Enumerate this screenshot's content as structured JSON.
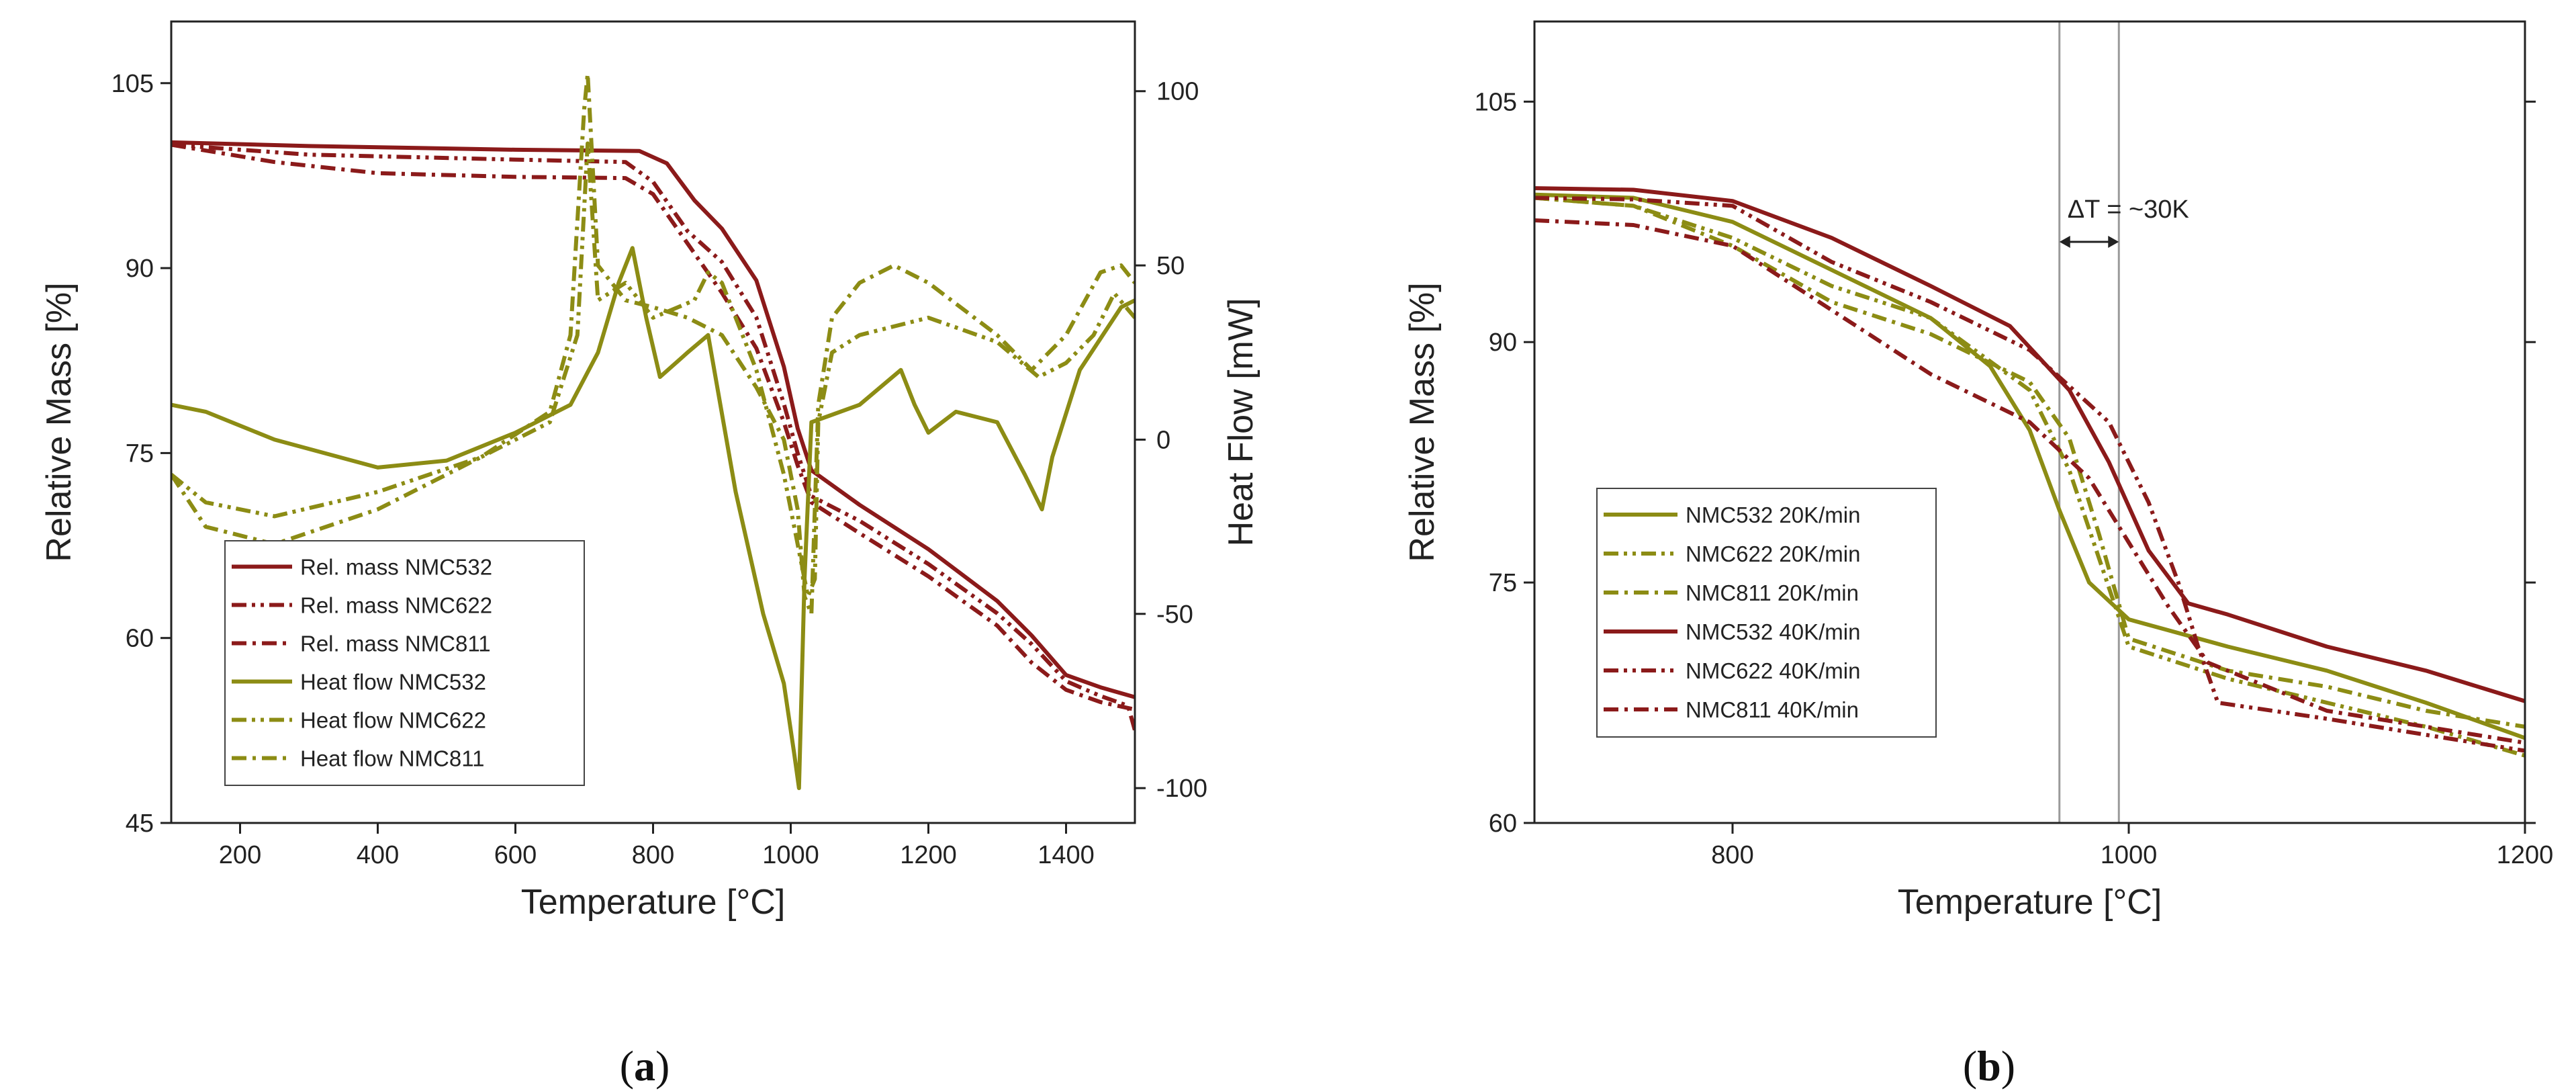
{
  "colors": {
    "mass": "#8b1a1a",
    "heat": "#8c8c14",
    "axis": "#222222",
    "guide": "#9a9a9a"
  },
  "chart_data": [
    {
      "type": "line",
      "panel_label": {
        "open": "(",
        "letter": "a",
        "close": ")"
      },
      "xlabel": "Temperature [°C]",
      "ylabel": "Relative Mass [%]",
      "y2label": "Heat Flow [mW]",
      "xlim": [
        100,
        1500
      ],
      "ylim": [
        45,
        110
      ],
      "y2lim": [
        -110,
        120
      ],
      "xticks": [
        200,
        400,
        600,
        800,
        1000,
        1200,
        1400
      ],
      "yticks": [
        45,
        60,
        75,
        90,
        105
      ],
      "y2ticks": [
        100,
        50,
        0,
        -50,
        -100
      ],
      "legend_position": "lower-left",
      "series": [
        {
          "name": "Rel. mass NMC532",
          "axis": "y",
          "color_key": "mass",
          "dash": "solid",
          "x": [
            100,
            300,
            600,
            780,
            820,
            860,
            900,
            950,
            990,
            1010,
            1030,
            1100,
            1200,
            1300,
            1350,
            1400,
            1450,
            1500
          ],
          "y": [
            100.2,
            99.9,
            99.6,
            99.5,
            98.5,
            95.5,
            93.2,
            89.0,
            82.0,
            77.0,
            73.6,
            70.8,
            67.2,
            63.0,
            60.2,
            57.0,
            56.0,
            55.2
          ]
        },
        {
          "name": "Rel. mass NMC622",
          "axis": "y",
          "color_key": "mass",
          "dash": "dashdotdot",
          "x": [
            100,
            300,
            600,
            760,
            800,
            850,
            900,
            950,
            990,
            1010,
            1030,
            1100,
            1200,
            1300,
            1350,
            1400,
            1450,
            1490,
            1500
          ],
          "y": [
            100.0,
            99.2,
            98.8,
            98.6,
            97.0,
            93.0,
            90.5,
            86.0,
            79.0,
            75.0,
            71.5,
            69.5,
            66.0,
            62.0,
            59.5,
            56.5,
            55.3,
            54.5,
            52.5
          ]
        },
        {
          "name": "Rel. mass NMC811",
          "axis": "y",
          "color_key": "mass",
          "dash": "dashdot",
          "x": [
            100,
            250,
            400,
            600,
            760,
            800,
            850,
            900,
            950,
            990,
            1010,
            1030,
            1100,
            1200,
            1300,
            1350,
            1400,
            1450,
            1500
          ],
          "y": [
            100.0,
            98.6,
            97.7,
            97.4,
            97.3,
            96.0,
            92.0,
            88.0,
            83.5,
            77.5,
            74.0,
            71.0,
            68.5,
            65.0,
            61.0,
            58.0,
            55.8,
            54.8,
            54.2
          ]
        },
        {
          "name": "Heat flow NMC532",
          "axis": "y2",
          "color_key": "heat",
          "dash": "solid",
          "x": [
            100,
            150,
            250,
            400,
            500,
            600,
            680,
            720,
            750,
            770,
            790,
            810,
            850,
            880,
            920,
            960,
            990,
            1005,
            1012,
            1020,
            1030,
            1100,
            1160,
            1180,
            1200,
            1240,
            1300,
            1340,
            1365,
            1380,
            1420,
            1480,
            1500
          ],
          "y": [
            10,
            8,
            0,
            -8,
            -6,
            2,
            10,
            25,
            45,
            55,
            35,
            18,
            25,
            30,
            -15,
            -50,
            -70,
            -90,
            -100,
            -40,
            5,
            10,
            20,
            10,
            2,
            8,
            5,
            -10,
            -20,
            -5,
            20,
            38,
            40
          ]
        },
        {
          "name": "Heat flow NMC622",
          "axis": "y2",
          "color_key": "heat",
          "dash": "dashdotdot",
          "x": [
            100,
            150,
            250,
            400,
            550,
            650,
            690,
            705,
            720,
            760,
            800,
            860,
            880,
            900,
            950,
            990,
            1010,
            1025,
            1035,
            1040,
            1060,
            1100,
            1200,
            1300,
            1360,
            1400,
            1440,
            1470,
            1500
          ],
          "y": [
            -10,
            -18,
            -22,
            -15,
            -5,
            5,
            30,
            85,
            40,
            45,
            35,
            40,
            48,
            45,
            20,
            -10,
            -30,
            -45,
            -40,
            5,
            25,
            30,
            35,
            28,
            18,
            22,
            30,
            42,
            35
          ]
        },
        {
          "name": "Heat flow NMC811",
          "axis": "y2",
          "color_key": "heat",
          "dash": "dashdot",
          "x": [
            100,
            150,
            250,
            400,
            550,
            650,
            680,
            700,
            705,
            720,
            760,
            800,
            850,
            900,
            950,
            990,
            1010,
            1020,
            1030,
            1040,
            1060,
            1100,
            1150,
            1200,
            1300,
            1350,
            1400,
            1450,
            1480,
            1500
          ],
          "y": [
            -10,
            -25,
            -30,
            -20,
            -5,
            8,
            30,
            95,
            105,
            50,
            40,
            38,
            35,
            30,
            15,
            0,
            -20,
            -45,
            -50,
            10,
            35,
            45,
            50,
            45,
            30,
            20,
            30,
            48,
            50,
            45
          ]
        }
      ]
    },
    {
      "type": "line",
      "panel_label": {
        "open": "(",
        "letter": "b",
        "close": ")"
      },
      "xlabel": "Temperature [°C]",
      "ylabel": "Relative Mass [%]",
      "xlim": [
        700,
        1200
      ],
      "ylim": [
        60,
        110
      ],
      "xticks": [
        800,
        1000,
        1200
      ],
      "yticks": [
        60,
        75,
        90,
        105
      ],
      "legend_position": "lower-left",
      "annotation": {
        "text": "ΔT = ~30K",
        "x1": 965,
        "x2": 995
      },
      "series": [
        {
          "name": "NMC532 20K/min",
          "color_key": "heat",
          "dash": "solid",
          "x": [
            700,
            750,
            800,
            850,
            900,
            930,
            950,
            965,
            980,
            1000,
            1050,
            1100,
            1150,
            1200
          ],
          "y": [
            99.2,
            99.0,
            97.5,
            94.5,
            91.5,
            88.5,
            84.5,
            79.5,
            75.0,
            72.7,
            71.0,
            69.5,
            67.5,
            65.3
          ]
        },
        {
          "name": "NMC622 20K/min",
          "color_key": "heat",
          "dash": "dashdotdot",
          "x": [
            700,
            750,
            800,
            850,
            900,
            950,
            970,
            985,
            1000,
            1050,
            1100,
            1150,
            1200
          ],
          "y": [
            99.0,
            98.5,
            96.5,
            93.5,
            91.5,
            87.0,
            82.0,
            76.5,
            71.0,
            69.0,
            67.5,
            66.0,
            64.2
          ]
        },
        {
          "name": "NMC811 20K/min",
          "color_key": "heat",
          "dash": "dashdot",
          "x": [
            700,
            750,
            800,
            850,
            900,
            950,
            970,
            985,
            1000,
            1050,
            1100,
            1150,
            1200
          ],
          "y": [
            99.0,
            98.5,
            96.0,
            92.5,
            90.5,
            87.5,
            84.0,
            78.0,
            71.5,
            69.5,
            68.5,
            67.0,
            66.0
          ]
        },
        {
          "name": "NMC532 40K/min",
          "color_key": "mass",
          "dash": "solid",
          "x": [
            700,
            750,
            800,
            850,
            900,
            940,
            970,
            990,
            1010,
            1030,
            1050,
            1100,
            1150,
            1200
          ],
          "y": [
            99.6,
            99.5,
            98.8,
            96.5,
            93.5,
            91.0,
            87.0,
            82.5,
            77.0,
            73.7,
            73.0,
            71.0,
            69.5,
            67.6
          ]
        },
        {
          "name": "NMC622 40K/min",
          "color_key": "mass",
          "dash": "dashdotdot",
          "x": [
            700,
            750,
            800,
            850,
            900,
            950,
            990,
            1010,
            1025,
            1035,
            1045,
            1100,
            1150,
            1200
          ],
          "y": [
            99.0,
            98.9,
            98.5,
            95.0,
            92.5,
            89.5,
            85.0,
            80.0,
            75.0,
            71.0,
            67.5,
            66.5,
            65.5,
            64.5
          ]
        },
        {
          "name": "NMC811 40K/min",
          "color_key": "mass",
          "dash": "dashdot",
          "x": [
            700,
            750,
            800,
            850,
            900,
            950,
            980,
            1000,
            1020,
            1040,
            1100,
            1150,
            1200
          ],
          "y": [
            97.6,
            97.3,
            96.0,
            92.0,
            88.0,
            85.0,
            81.5,
            77.5,
            73.5,
            70.0,
            67.0,
            66.0,
            65.0
          ]
        }
      ]
    }
  ]
}
